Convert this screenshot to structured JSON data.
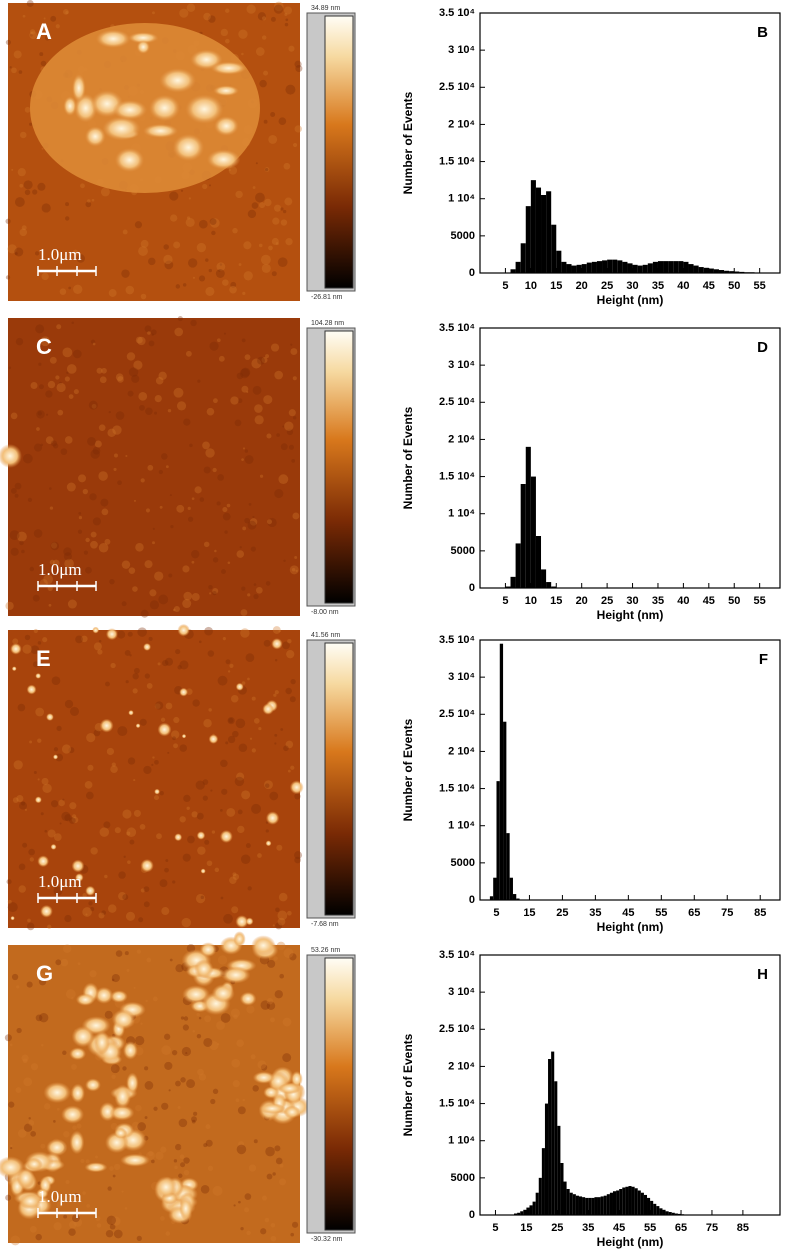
{
  "panels": [
    {
      "letter": "A",
      "colorbar_max": "34.89 nm",
      "colorbar_min": "-26.81 nm",
      "scale_bar": "1.0μm"
    },
    {
      "letter": "C",
      "colorbar_max": "104.28 nm",
      "colorbar_min": "-8.00 nm",
      "scale_bar": "1.0μm"
    },
    {
      "letter": "E",
      "colorbar_max": "41.56 nm",
      "colorbar_min": "-7.68 nm",
      "scale_bar": "1.0μm"
    },
    {
      "letter": "G",
      "colorbar_max": "53.26 nm",
      "colorbar_min": "-30.32 nm",
      "scale_bar": "1.0μm"
    }
  ],
  "chart_data": [
    {
      "type": "histogram",
      "panel_label": "B",
      "x_label": "Height (nm)",
      "y_label": "Number of Events",
      "color": "#000000",
      "bins": [
        6,
        7,
        8,
        9,
        10,
        11,
        12,
        13,
        14,
        15,
        16,
        17,
        18,
        19,
        20,
        21,
        22,
        23,
        24,
        25,
        26,
        27,
        28,
        29,
        30,
        31,
        32,
        33,
        34,
        35,
        36,
        37,
        38,
        39,
        40,
        41,
        42,
        43,
        44,
        45,
        46,
        47,
        48,
        49,
        50,
        51,
        52,
        53,
        54,
        55
      ],
      "values": [
        500,
        1500,
        4000,
        9000,
        12500,
        11500,
        10500,
        11000,
        6500,
        3000,
        1500,
        1200,
        1000,
        1100,
        1200,
        1400,
        1500,
        1600,
        1700,
        1800,
        1800,
        1700,
        1500,
        1300,
        1100,
        1000,
        1100,
        1300,
        1500,
        1600,
        1600,
        1600,
        1600,
        1600,
        1500,
        1200,
        1000,
        800,
        700,
        600,
        500,
        400,
        300,
        250,
        200,
        150,
        100,
        100,
        50
      ],
      "xlim": [
        0,
        59
      ],
      "xticks": [
        5,
        10,
        15,
        20,
        25,
        30,
        35,
        40,
        45,
        50,
        55
      ],
      "ylim": [
        0,
        35000
      ],
      "yticks": [
        0,
        5000,
        {
          "value": 10000,
          "label": "1 10⁴"
        },
        {
          "value": 15000,
          "label": "1.5 10⁴"
        },
        {
          "value": 20000,
          "label": "2 10⁴"
        },
        {
          "value": 25000,
          "label": "2.5 10⁴"
        },
        {
          "value": 30000,
          "label": "3 10⁴"
        },
        {
          "value": 35000,
          "label": "3.5 10⁴"
        }
      ]
    },
    {
      "type": "histogram",
      "panel_label": "D",
      "x_label": "Height (nm)",
      "y_label": "Number of Events",
      "color": "#000000",
      "bins": [
        5,
        6,
        7,
        8,
        9,
        10,
        11,
        12,
        13,
        14,
        15
      ],
      "values": [
        200,
        1500,
        6000,
        14000,
        19000,
        15000,
        7000,
        2500,
        800,
        200
      ],
      "xlim": [
        0,
        59
      ],
      "xticks": [
        5,
        10,
        15,
        20,
        25,
        30,
        35,
        40,
        45,
        50,
        55
      ],
      "ylim": [
        0,
        35000
      ],
      "yticks": [
        0,
        5000,
        {
          "value": 10000,
          "label": "1 10⁴"
        },
        {
          "value": 15000,
          "label": "1.5 10⁴"
        },
        {
          "value": 20000,
          "label": "2 10⁴"
        },
        {
          "value": 25000,
          "label": "2.5 10⁴"
        },
        {
          "value": 30000,
          "label": "3 10⁴"
        },
        {
          "value": 35000,
          "label": "3.5 10⁴"
        }
      ]
    },
    {
      "type": "histogram",
      "panel_label": "F",
      "x_label": "Height (nm)",
      "y_label": "Number of Events",
      "color": "#000000",
      "bins": [
        3,
        4,
        5,
        6,
        7,
        8,
        9,
        10,
        11,
        12
      ],
      "values": [
        500,
        3000,
        16000,
        34500,
        24000,
        9000,
        3000,
        800,
        200
      ],
      "xlim": [
        0,
        91
      ],
      "xticks": [
        5,
        15,
        25,
        35,
        45,
        55,
        65,
        75,
        85
      ],
      "ylim": [
        0,
        35000
      ],
      "yticks": [
        0,
        5000,
        {
          "value": 10000,
          "label": "1 10⁴"
        },
        {
          "value": 15000,
          "label": "1.5 10⁴"
        },
        {
          "value": 20000,
          "label": "2 10⁴"
        },
        {
          "value": 25000,
          "label": "2.5 10⁴"
        },
        {
          "value": 30000,
          "label": "3 10⁴"
        },
        {
          "value": 35000,
          "label": "3.5 10⁴"
        }
      ]
    },
    {
      "type": "histogram",
      "panel_label": "H",
      "x_label": "Height (nm)",
      "y_label": "Number of Events",
      "color": "#000000",
      "bins": [
        11,
        12,
        13,
        14,
        15,
        16,
        17,
        18,
        19,
        20,
        21,
        22,
        23,
        24,
        25,
        26,
        27,
        28,
        29,
        30,
        31,
        32,
        33,
        34,
        35,
        36,
        37,
        38,
        39,
        40,
        41,
        42,
        43,
        44,
        45,
        46,
        47,
        48,
        49,
        50,
        51,
        52,
        53,
        54,
        55,
        56,
        57,
        58,
        59,
        60,
        61,
        62,
        63,
        64,
        65,
        66
      ],
      "values": [
        200,
        300,
        500,
        700,
        1000,
        1300,
        1800,
        3000,
        5000,
        9000,
        15000,
        21000,
        22000,
        18000,
        12000,
        7000,
        4500,
        3500,
        3000,
        2800,
        2600,
        2500,
        2400,
        2300,
        2300,
        2300,
        2400,
        2400,
        2500,
        2600,
        2800,
        3000,
        3200,
        3300,
        3500,
        3700,
        3800,
        3900,
        3800,
        3600,
        3300,
        3000,
        2700,
        2300,
        1900,
        1500,
        1200,
        900,
        700,
        500,
        400,
        300,
        200,
        150,
        100
      ],
      "xlim": [
        0,
        97
      ],
      "xticks": [
        5,
        15,
        25,
        35,
        45,
        55,
        65,
        75,
        85
      ],
      "ylim": [
        0,
        35000
      ],
      "yticks": [
        0,
        5000,
        {
          "value": 10000,
          "label": "1 10⁴"
        },
        {
          "value": 15000,
          "label": "1.5 10⁴"
        },
        {
          "value": 20000,
          "label": "2 10⁴"
        },
        {
          "value": 25000,
          "label": "2.5 10⁴"
        },
        {
          "value": 30000,
          "label": "3 10⁴"
        },
        {
          "value": 35000,
          "label": "3.5 10⁴"
        }
      ]
    }
  ]
}
